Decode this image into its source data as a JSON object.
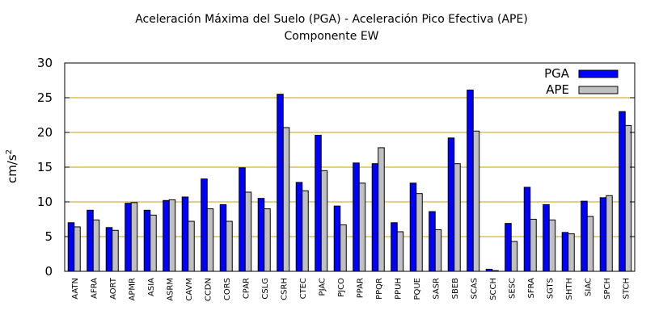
{
  "chart_data": {
    "type": "bar",
    "title": "Aceleración Máxima del Suelo (PGA) -  Aceleración Pico Efectiva (APE)",
    "subtitle": "Componente EW",
    "xlabel": "",
    "ylabel": "cm/s",
    "ylabel_superscript": "2",
    "ylim": [
      0,
      30
    ],
    "yticks": [
      0,
      5,
      10,
      15,
      20,
      25,
      30
    ],
    "grid": "horizontal",
    "legend_position": "top-right",
    "categories": [
      "AATN",
      "AFRA",
      "AORT",
      "APMR",
      "ASIA",
      "ASRM",
      "CAVM",
      "CCDN",
      "CORS",
      "CPAR",
      "CSLG",
      "CSRH",
      "CTEC",
      "PJAC",
      "PJCO",
      "PPAR",
      "PPQR",
      "PPUH",
      "PQUE",
      "SASR",
      "SBEB",
      "SCAS",
      "SCCH",
      "SESC",
      "SFRA",
      "SGTS",
      "SHTH",
      "SIAC",
      "SPCH",
      "STCH"
    ],
    "series": [
      {
        "name": "PGA",
        "color": "#0000ff",
        "values": [
          7.0,
          8.8,
          6.3,
          9.8,
          8.8,
          10.2,
          10.7,
          13.3,
          9.6,
          14.9,
          10.5,
          25.5,
          12.8,
          19.6,
          9.4,
          15.6,
          15.5,
          7.0,
          12.7,
          8.6,
          19.2,
          26.1,
          0.3,
          6.9,
          12.1,
          9.6,
          5.6,
          10.1,
          10.6,
          23.0
        ]
      },
      {
        "name": "APE",
        "color": "#c0c0c0",
        "values": [
          6.4,
          7.4,
          5.9,
          9.9,
          8.1,
          10.3,
          7.2,
          9.0,
          7.2,
          11.4,
          9.0,
          20.7,
          11.6,
          14.5,
          6.7,
          12.7,
          17.8,
          5.7,
          11.2,
          6.0,
          15.5,
          20.2,
          0.1,
          4.3,
          7.5,
          7.4,
          5.4,
          7.9,
          10.9,
          21.0
        ]
      }
    ],
    "grid_color": "#c8a000"
  }
}
